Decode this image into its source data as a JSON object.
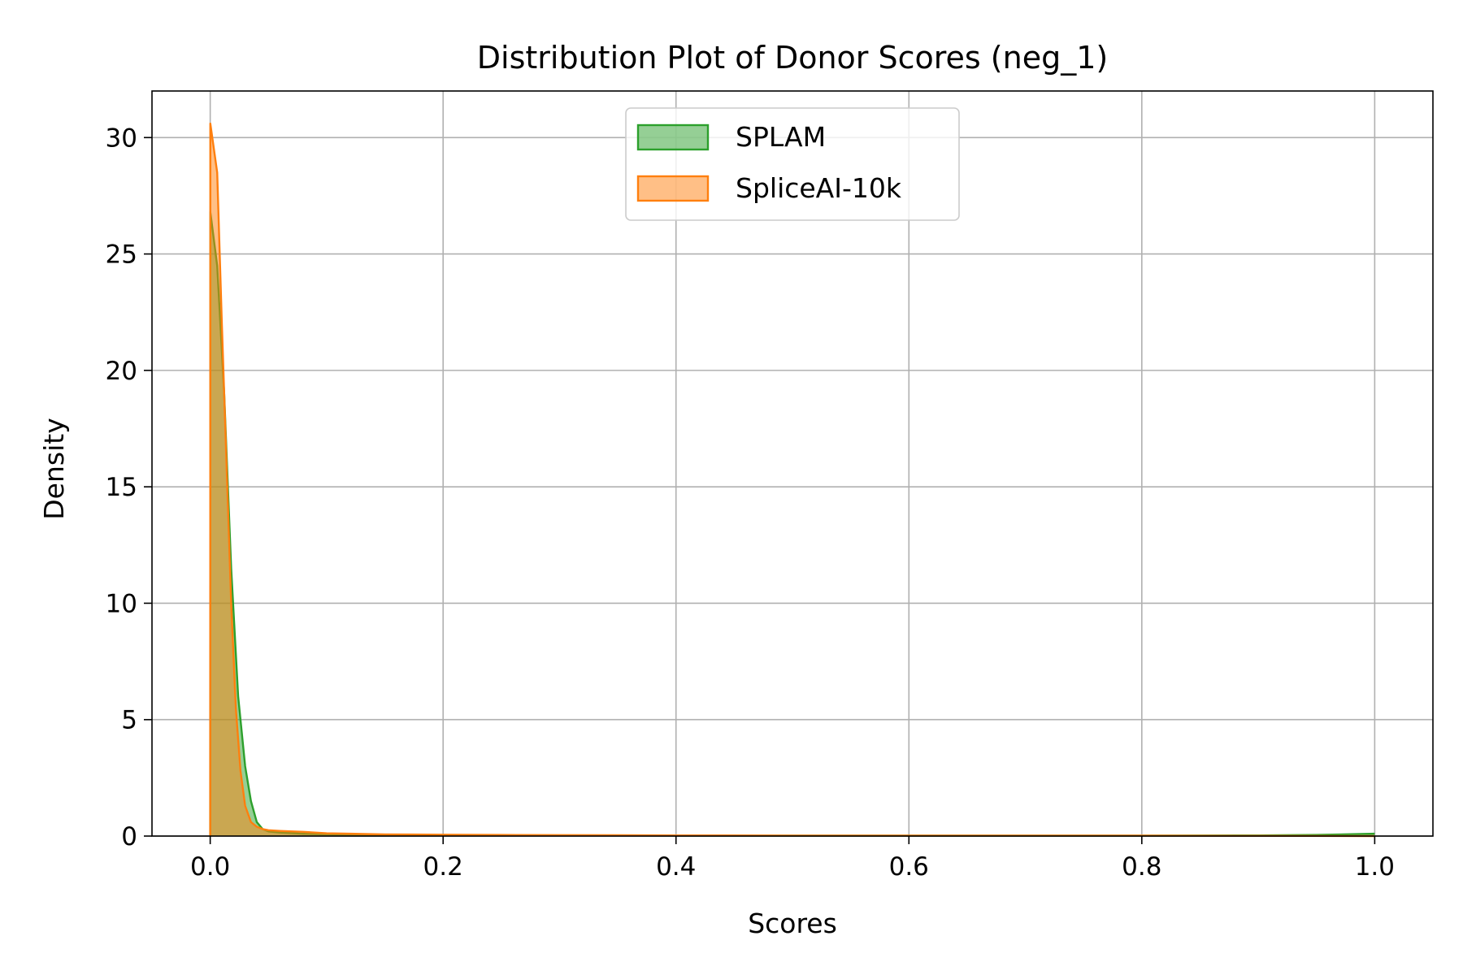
{
  "chart_data": {
    "type": "area",
    "title": "Distribution Plot of Donor Scores (neg_1)",
    "xlabel": "Scores",
    "ylabel": "Density",
    "xlim": [
      -0.05,
      1.05
    ],
    "ylim": [
      0,
      32
    ],
    "xticks": [
      0.0,
      0.2,
      0.4,
      0.6,
      0.8,
      1.0
    ],
    "xtick_labels": [
      "0.0",
      "0.2",
      "0.4",
      "0.6",
      "0.8",
      "1.0"
    ],
    "yticks": [
      0,
      5,
      10,
      15,
      20,
      25,
      30
    ],
    "ytick_labels": [
      "0",
      "5",
      "10",
      "15",
      "20",
      "25",
      "30"
    ],
    "grid": true,
    "legend_position": "upper-center",
    "series": [
      {
        "name": "SPLAM",
        "color": "#2ca02c",
        "x": [
          0.0,
          0.0001,
          0.006,
          0.012,
          0.018,
          0.024,
          0.03,
          0.035,
          0.04,
          0.045,
          0.05,
          0.06,
          0.08,
          0.1,
          0.15,
          0.2,
          0.3,
          0.4,
          0.5,
          0.6,
          0.7,
          0.8,
          0.9,
          0.95,
          0.98,
          1.0
        ],
        "y": [
          0.0,
          26.8,
          24.5,
          19.0,
          11.5,
          6.0,
          3.0,
          1.5,
          0.6,
          0.3,
          0.2,
          0.15,
          0.1,
          0.08,
          0.05,
          0.04,
          0.03,
          0.02,
          0.02,
          0.02,
          0.02,
          0.02,
          0.03,
          0.05,
          0.08,
          0.1
        ]
      },
      {
        "name": "SpliceAI-10k",
        "color": "#ff7f0e",
        "x": [
          0.0,
          0.0001,
          0.006,
          0.01,
          0.014,
          0.018,
          0.022,
          0.026,
          0.03,
          0.035,
          0.04,
          0.045,
          0.05,
          0.06,
          0.08,
          0.1,
          0.12,
          0.15,
          0.2,
          0.25,
          0.3,
          0.4,
          0.5,
          0.6,
          0.7,
          0.8,
          0.9,
          1.0
        ],
        "y": [
          0.0,
          30.6,
          28.5,
          22.0,
          16.0,
          10.0,
          5.5,
          2.8,
          1.3,
          0.6,
          0.4,
          0.3,
          0.25,
          0.22,
          0.18,
          0.12,
          0.1,
          0.07,
          0.06,
          0.05,
          0.04,
          0.03,
          0.02,
          0.02,
          0.02,
          0.02,
          0.01,
          0.0
        ]
      }
    ]
  }
}
